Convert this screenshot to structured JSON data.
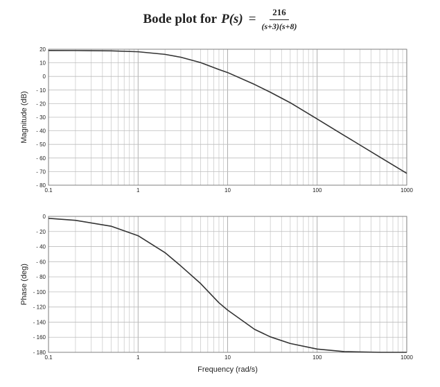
{
  "title": {
    "lead": "Bode plot for",
    "fn": "P(s)",
    "eq": "=",
    "numerator": "216",
    "denominator": "(s+3)(s+8)"
  },
  "chart_data": [
    {
      "type": "line",
      "title": "",
      "xlabel": "",
      "ylabel": "Magnitude (dB)",
      "xscale": "log",
      "xlim": [
        0.1,
        1000
      ],
      "ylim": [
        -80,
        20
      ],
      "xticks": [
        0.1,
        1,
        10,
        100,
        1000
      ],
      "xtick_labels": [
        "0.1",
        "1",
        "10",
        "100",
        "1000"
      ],
      "yticks": [
        20,
        10,
        0,
        -10,
        -20,
        -30,
        -40,
        -50,
        -60,
        -70,
        -80
      ],
      "ytick_labels": [
        "20",
        "10",
        "0",
        "- 10",
        "- 20",
        "- 30",
        "- 40",
        "- 50",
        "- 60",
        "- 70",
        "- 80"
      ],
      "grid": true,
      "series": [
        {
          "x": [
            0.1,
            0.2,
            0.5,
            1,
            2,
            3,
            5,
            8,
            10,
            20,
            30,
            50,
            100,
            200,
            500,
            1000
          ],
          "y": [
            19.08,
            19.04,
            18.81,
            18.15,
            16.23,
            14.13,
            10.18,
            5.07,
            2.87,
            -5.91,
            -11.64,
            -19.34,
            -31.3,
            -43.4,
            -59.28,
            -71.3
          ]
        }
      ]
    },
    {
      "type": "line",
      "title": "",
      "xlabel": "Frequency (rad/s)",
      "ylabel": "Phase (deg)",
      "xscale": "log",
      "xlim": [
        0.1,
        1000
      ],
      "ylim": [
        -180,
        0
      ],
      "xticks": [
        0.1,
        1,
        10,
        100,
        1000
      ],
      "xtick_labels": [
        "0.1",
        "1",
        "10",
        "100",
        "1000"
      ],
      "yticks": [
        0,
        -20,
        -40,
        -60,
        -80,
        -100,
        -120,
        -140,
        -160,
        -180
      ],
      "ytick_labels": [
        "0",
        "- 20",
        "- 40",
        "- 60",
        "- 80",
        "- 100",
        "- 120",
        "- 140",
        "- 160",
        "- 180"
      ],
      "grid": true,
      "series": [
        {
          "x": [
            0.1,
            0.2,
            0.5,
            1,
            2,
            3,
            5,
            8,
            10,
            20,
            30,
            50,
            100,
            200,
            500,
            1000
          ],
          "y": [
            -2.62,
            -5.24,
            -13.0,
            -25.57,
            -48.0,
            -65.6,
            -89.0,
            -114.4,
            -124.1,
            -149.6,
            -159.5,
            -168.3,
            -175.7,
            -179.0,
            -181.3,
            -182.0
          ]
        }
      ]
    }
  ]
}
